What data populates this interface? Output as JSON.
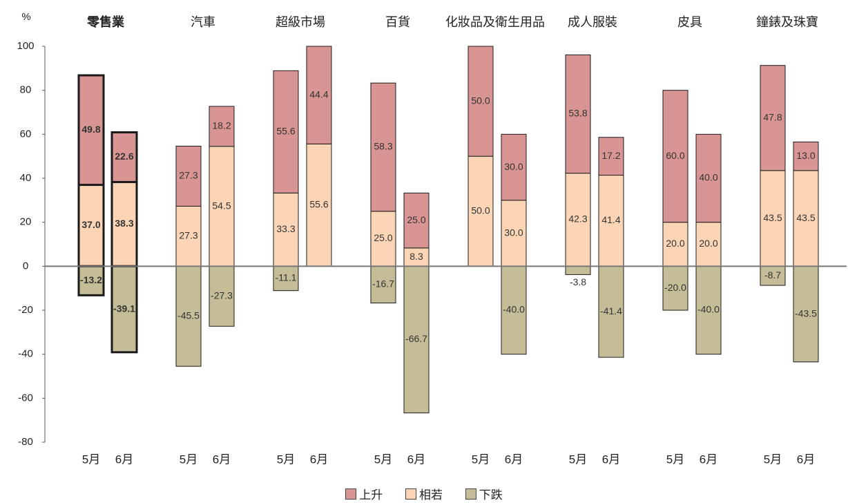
{
  "chart_data": {
    "type": "bar",
    "stacked": true,
    "y_unit_label": "%",
    "ylim": [
      -80,
      100
    ],
    "yticks": [
      -80,
      -60,
      -40,
      -20,
      0,
      20,
      40,
      60,
      80,
      100
    ],
    "grid": false,
    "legend_placement": "bottom",
    "months": [
      "5月",
      "6月"
    ],
    "series": [
      {
        "name": "上升",
        "color": "#d99594"
      },
      {
        "name": "相若",
        "color": "#fbd5b5"
      },
      {
        "name": "下跌",
        "color": "#c4bd97"
      }
    ],
    "groups": [
      {
        "category": "零售業",
        "highlight": true,
        "bars": [
          {
            "month": "5月",
            "up": 49.8,
            "same": 37.0,
            "down": -13.2
          },
          {
            "month": "6月",
            "up": 22.6,
            "same": 38.3,
            "down": -39.1
          }
        ]
      },
      {
        "category": "汽車",
        "highlight": false,
        "bars": [
          {
            "month": "5月",
            "up": 27.3,
            "same": 27.3,
            "down": -45.5
          },
          {
            "month": "6月",
            "up": 18.2,
            "same": 54.5,
            "down": -27.3
          }
        ]
      },
      {
        "category": "超級市場",
        "highlight": false,
        "bars": [
          {
            "month": "5月",
            "up": 55.6,
            "same": 33.3,
            "down": -11.1
          },
          {
            "month": "6月",
            "up": 44.4,
            "same": 55.6,
            "down": 0
          }
        ]
      },
      {
        "category": "百貨",
        "highlight": false,
        "bars": [
          {
            "month": "5月",
            "up": 58.3,
            "same": 25.0,
            "down": -16.7
          },
          {
            "month": "6月",
            "up": 25.0,
            "same": 8.3,
            "down": -66.7
          }
        ]
      },
      {
        "category": "化妝品及衛生用品",
        "highlight": false,
        "bars": [
          {
            "month": "5月",
            "up": 50.0,
            "same": 50.0,
            "down": 0
          },
          {
            "month": "6月",
            "up": 30.0,
            "same": 30.0,
            "down": -40.0
          }
        ]
      },
      {
        "category": "成人服裝",
        "highlight": false,
        "bars": [
          {
            "month": "5月",
            "up": 53.8,
            "same": 42.3,
            "down": -3.8
          },
          {
            "month": "6月",
            "up": 17.2,
            "same": 41.4,
            "down": -41.4
          }
        ]
      },
      {
        "category": "皮具",
        "highlight": false,
        "bars": [
          {
            "month": "5月",
            "up": 60.0,
            "same": 20.0,
            "down": -20.0
          },
          {
            "month": "6月",
            "up": 40.0,
            "same": 20.0,
            "down": -40.0
          }
        ]
      },
      {
        "category": "鐘錶及珠寶",
        "highlight": false,
        "bars": [
          {
            "month": "5月",
            "up": 47.8,
            "same": 43.5,
            "down": -8.7
          },
          {
            "month": "6月",
            "up": 13.0,
            "same": 43.5,
            "down": -43.5
          }
        ]
      }
    ]
  }
}
